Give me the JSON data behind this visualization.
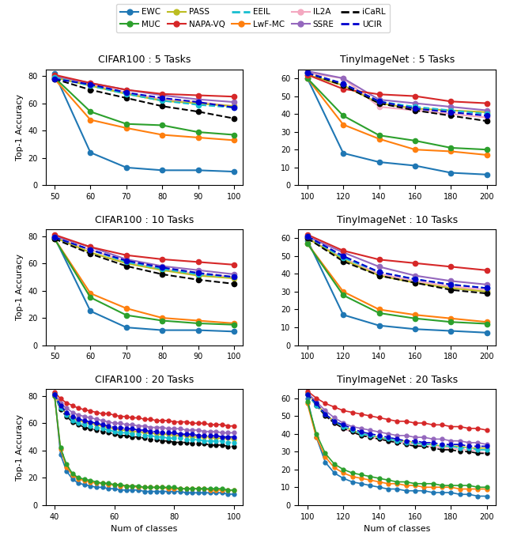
{
  "subplots": [
    {
      "title": "CIFAR100 : 5 Tasks",
      "xlabel": "",
      "ylabel": "Top-1 Accuracy",
      "x": [
        50,
        60,
        70,
        80,
        90,
        100
      ],
      "ylim": [
        0,
        85
      ],
      "series": {
        "EWC": [
          82,
          24,
          13,
          11,
          11,
          10
        ],
        "LwF-MC": [
          78,
          48,
          42,
          37,
          35,
          33
        ],
        "MUC": [
          79,
          54,
          45,
          44,
          39,
          37
        ],
        "IL2A": [
          79,
          74,
          68,
          63,
          61,
          58
        ],
        "PASS": [
          79,
          73,
          67,
          62,
          60,
          58
        ],
        "SSRE": [
          80,
          75,
          70,
          66,
          63,
          61
        ],
        "NAPA-VQ": [
          81,
          75,
          70,
          67,
          66,
          65
        ],
        "iCaRL": [
          78,
          70,
          64,
          58,
          54,
          49
        ],
        "EEIL": [
          79,
          73,
          67,
          62,
          59,
          57
        ],
        "UCIR": [
          78,
          74,
          68,
          64,
          61,
          57
        ]
      }
    },
    {
      "title": "TinyImageNet : 5 Tasks",
      "xlabel": "",
      "ylabel": "",
      "x": [
        100,
        120,
        140,
        160,
        180,
        200
      ],
      "ylim": [
        0,
        65
      ],
      "series": {
        "EWC": [
          60,
          18,
          13,
          11,
          7,
          6
        ],
        "LwF-MC": [
          60,
          34,
          26,
          20,
          19,
          17
        ],
        "MUC": [
          60,
          39,
          28,
          25,
          21,
          20
        ],
        "IL2A": [
          63,
          60,
          44,
          42,
          40,
          38
        ],
        "PASS": [
          62,
          56,
          46,
          43,
          42,
          41
        ],
        "SSRE": [
          64,
          60,
          48,
          46,
          44,
          42
        ],
        "NAPA-VQ": [
          62,
          54,
          51,
          50,
          47,
          46
        ],
        "iCaRL": [
          63,
          56,
          46,
          42,
          39,
          36
        ],
        "EEIL": [
          63,
          57,
          47,
          44,
          42,
          40
        ],
        "UCIR": [
          63,
          57,
          47,
          43,
          41,
          39
        ]
      }
    },
    {
      "title": "CIFAR100 : 10 Tasks",
      "xlabel": "",
      "ylabel": "Top-1 Accuracy",
      "x": [
        50,
        60,
        70,
        80,
        90,
        100
      ],
      "ylim": [
        0,
        85
      ],
      "series": {
        "EWC": [
          79,
          25,
          13,
          11,
          11,
          10
        ],
        "LwF-MC": [
          78,
          38,
          27,
          20,
          18,
          16
        ],
        "MUC": [
          78,
          35,
          22,
          18,
          16,
          15
        ],
        "IL2A": [
          79,
          70,
          61,
          56,
          52,
          50
        ],
        "PASS": [
          79,
          68,
          60,
          55,
          51,
          49
        ],
        "SSRE": [
          80,
          72,
          63,
          58,
          55,
          52
        ],
        "NAPA-VQ": [
          81,
          72,
          66,
          63,
          61,
          59
        ],
        "iCaRL": [
          78,
          67,
          58,
          52,
          48,
          45
        ],
        "EEIL": [
          79,
          70,
          61,
          56,
          52,
          50
        ],
        "UCIR": [
          79,
          70,
          62,
          57,
          53,
          50
        ]
      }
    },
    {
      "title": "TinyImageNet : 10 Tasks",
      "xlabel": "",
      "ylabel": "",
      "x": [
        100,
        120,
        140,
        160,
        180,
        200
      ],
      "ylim": [
        0,
        65
      ],
      "series": {
        "EWC": [
          59,
          17,
          11,
          9,
          8,
          7
        ],
        "LwF-MC": [
          57,
          30,
          20,
          17,
          15,
          13
        ],
        "MUC": [
          57,
          28,
          18,
          15,
          13,
          12
        ],
        "IL2A": [
          60,
          49,
          40,
          36,
          33,
          31
        ],
        "PASS": [
          60,
          48,
          39,
          35,
          32,
          30
        ],
        "SSRE": [
          61,
          52,
          44,
          39,
          36,
          34
        ],
        "NAPA-VQ": [
          62,
          53,
          48,
          46,
          44,
          42
        ],
        "iCaRL": [
          60,
          47,
          39,
          35,
          31,
          29
        ],
        "EEIL": [
          61,
          49,
          41,
          37,
          34,
          32
        ],
        "UCIR": [
          61,
          50,
          41,
          37,
          34,
          32
        ]
      }
    },
    {
      "title": "CIFAR100 : 20 Tasks",
      "xlabel": "Num of classes",
      "ylabel": "Top-1 Accuracy",
      "x": [
        40,
        42,
        44,
        46,
        48,
        50,
        52,
        54,
        56,
        58,
        60,
        62,
        64,
        66,
        68,
        70,
        72,
        74,
        76,
        78,
        80,
        82,
        84,
        86,
        88,
        90,
        92,
        94,
        96,
        98,
        100
      ],
      "ylim": [
        0,
        85
      ],
      "series": {
        "EWC": [
          82,
          37,
          25,
          19,
          16,
          15,
          14,
          13,
          13,
          12,
          12,
          11,
          11,
          11,
          11,
          10,
          10,
          10,
          10,
          10,
          10,
          10,
          9,
          9,
          9,
          9,
          9,
          9,
          9,
          8,
          8
        ],
        "LwF-MC": [
          80,
          41,
          28,
          22,
          19,
          18,
          17,
          16,
          16,
          15,
          15,
          14,
          14,
          14,
          13,
          13,
          13,
          13,
          13,
          12,
          12,
          12,
          12,
          12,
          12,
          12,
          11,
          11,
          11,
          11,
          11
        ],
        "MUC": [
          80,
          42,
          30,
          23,
          20,
          19,
          18,
          17,
          16,
          16,
          15,
          15,
          14,
          14,
          14,
          13,
          13,
          13,
          13,
          13,
          13,
          12,
          12,
          12,
          12,
          12,
          12,
          12,
          12,
          11,
          11
        ],
        "IL2A": [
          81,
          72,
          67,
          64,
          62,
          61,
          60,
          59,
          58,
          57,
          56,
          56,
          55,
          55,
          54,
          54,
          53,
          53,
          53,
          52,
          52,
          52,
          51,
          51,
          51,
          51,
          50,
          50,
          50,
          49,
          49
        ],
        "PASS": [
          81,
          72,
          67,
          64,
          62,
          61,
          60,
          59,
          58,
          57,
          56,
          55,
          55,
          54,
          54,
          53,
          53,
          52,
          52,
          52,
          51,
          51,
          51,
          50,
          50,
          50,
          50,
          49,
          49,
          49,
          48
        ],
        "SSRE": [
          82,
          75,
          71,
          68,
          66,
          65,
          64,
          63,
          62,
          61,
          60,
          60,
          59,
          59,
          58,
          58,
          57,
          57,
          57,
          56,
          56,
          56,
          55,
          55,
          55,
          54,
          54,
          54,
          53,
          53,
          53
        ],
        "NAPA-VQ": [
          83,
          78,
          75,
          73,
          71,
          70,
          69,
          68,
          67,
          67,
          66,
          65,
          65,
          64,
          64,
          63,
          63,
          62,
          62,
          62,
          61,
          61,
          61,
          60,
          60,
          60,
          59,
          59,
          59,
          58,
          58
        ],
        "iCaRL": [
          81,
          70,
          65,
          61,
          59,
          57,
          56,
          55,
          54,
          53,
          52,
          51,
          51,
          50,
          50,
          49,
          48,
          48,
          47,
          47,
          46,
          46,
          46,
          45,
          45,
          45,
          44,
          44,
          44,
          43,
          43
        ],
        "EEIL": [
          81,
          71,
          66,
          62,
          60,
          59,
          58,
          57,
          56,
          55,
          54,
          53,
          53,
          52,
          52,
          51,
          51,
          50,
          50,
          49,
          49,
          49,
          48,
          48,
          48,
          47,
          47,
          47,
          47,
          46,
          46
        ],
        "UCIR": [
          81,
          73,
          68,
          65,
          63,
          62,
          61,
          60,
          59,
          58,
          57,
          57,
          56,
          56,
          55,
          55,
          54,
          54,
          53,
          53,
          53,
          52,
          52,
          52,
          51,
          51,
          51,
          51,
          50,
          50,
          50
        ]
      }
    },
    {
      "title": "TinyImageNet : 20 Tasks",
      "xlabel": "Num of classes",
      "ylabel": "",
      "x": [
        100,
        105,
        110,
        115,
        120,
        125,
        130,
        135,
        140,
        145,
        150,
        155,
        160,
        165,
        170,
        175,
        180,
        185,
        190,
        195,
        200
      ],
      "ylim": [
        0,
        65
      ],
      "series": {
        "EWC": [
          60,
          38,
          24,
          18,
          15,
          13,
          12,
          11,
          10,
          9,
          9,
          8,
          8,
          8,
          7,
          7,
          7,
          6,
          6,
          5,
          5
        ],
        "LwF-MC": [
          57,
          38,
          27,
          21,
          18,
          16,
          15,
          14,
          13,
          12,
          12,
          11,
          11,
          10,
          10,
          10,
          10,
          9,
          9,
          9,
          9
        ],
        "MUC": [
          58,
          40,
          29,
          23,
          20,
          18,
          17,
          16,
          15,
          14,
          13,
          13,
          12,
          12,
          12,
          11,
          11,
          11,
          11,
          10,
          10
        ],
        "IL2A": [
          63,
          57,
          51,
          46,
          43,
          41,
          39,
          38,
          37,
          36,
          35,
          35,
          34,
          33,
          33,
          32,
          32,
          31,
          31,
          30,
          29
        ],
        "PASS": [
          63,
          57,
          51,
          47,
          44,
          42,
          40,
          39,
          38,
          37,
          36,
          36,
          35,
          34,
          34,
          33,
          33,
          33,
          32,
          32,
          32
        ],
        "SSRE": [
          63,
          58,
          53,
          49,
          46,
          44,
          43,
          42,
          41,
          40,
          39,
          39,
          38,
          38,
          37,
          37,
          36,
          36,
          35,
          35,
          34
        ],
        "NAPA-VQ": [
          64,
          60,
          57,
          55,
          53,
          52,
          51,
          50,
          49,
          48,
          47,
          47,
          46,
          46,
          45,
          45,
          44,
          44,
          43,
          43,
          42
        ],
        "iCaRL": [
          62,
          56,
          50,
          46,
          43,
          41,
          39,
          38,
          37,
          36,
          35,
          34,
          33,
          33,
          32,
          31,
          31,
          30,
          30,
          29,
          29
        ],
        "EEIL": [
          62,
          56,
          51,
          47,
          44,
          42,
          40,
          39,
          38,
          37,
          36,
          35,
          35,
          34,
          34,
          33,
          33,
          32,
          32,
          31,
          31
        ],
        "UCIR": [
          62,
          57,
          51,
          47,
          45,
          43,
          41,
          40,
          39,
          38,
          37,
          36,
          36,
          35,
          35,
          34,
          34,
          34,
          33,
          33,
          33
        ]
      }
    }
  ],
  "series_styles": {
    "EWC": {
      "color": "#1f77b4",
      "ls": "-",
      "marker": "o"
    },
    "LwF-MC": {
      "color": "#ff7f0e",
      "ls": "-",
      "marker": "o"
    },
    "MUC": {
      "color": "#2ca02c",
      "ls": "-",
      "marker": "o"
    },
    "IL2A": {
      "color": "#f4a8c0",
      "ls": "-",
      "marker": "o"
    },
    "PASS": {
      "color": "#bcbd22",
      "ls": "-",
      "marker": "o"
    },
    "SSRE": {
      "color": "#9467bd",
      "ls": "-",
      "marker": "o"
    },
    "NAPA-VQ": {
      "color": "#d62728",
      "ls": "-",
      "marker": "o"
    },
    "iCaRL": {
      "color": "#000000",
      "ls": "--",
      "marker": "o"
    },
    "EEIL": {
      "color": "#17becf",
      "ls": "--",
      "marker": "o"
    },
    "UCIR": {
      "color": "#0000cd",
      "ls": "--",
      "marker": "o"
    }
  },
  "legend_order": [
    [
      "EWC",
      "#1f77b4",
      "-",
      true
    ],
    [
      "MUC",
      "#2ca02c",
      "-",
      true
    ],
    [
      "PASS",
      "#bcbd22",
      "-",
      true
    ],
    [
      "NAPA-VQ",
      "#d62728",
      "-",
      true
    ],
    [
      "EEIL",
      "#17becf",
      "--",
      false
    ],
    [
      "LwF-MC",
      "#ff7f0e",
      "-",
      true
    ],
    [
      "IL2A",
      "#f4a8c0",
      "-",
      true
    ],
    [
      "SSRE",
      "#9467bd",
      "-",
      true
    ],
    [
      "iCaRL",
      "#000000",
      "--",
      false
    ],
    [
      "UCIR",
      "#0000cd",
      "--",
      false
    ]
  ]
}
